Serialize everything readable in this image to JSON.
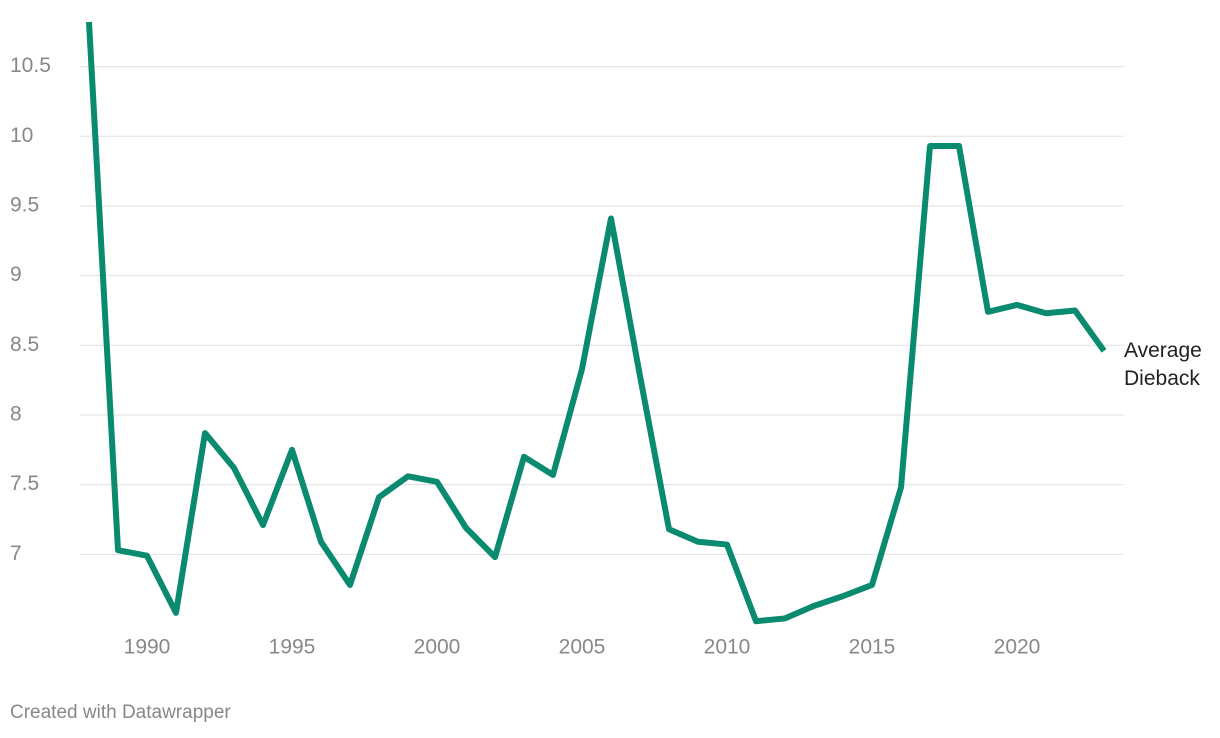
{
  "chart_data": {
    "type": "line",
    "x": [
      1988,
      1989,
      1990,
      1991,
      1992,
      1993,
      1994,
      1995,
      1996,
      1997,
      1998,
      1999,
      2000,
      2001,
      2002,
      2003,
      2004,
      2005,
      2006,
      2007,
      2008,
      2009,
      2010,
      2011,
      2012,
      2013,
      2014,
      2015,
      2016,
      2017,
      2018,
      2019,
      2020,
      2021,
      2022,
      2023
    ],
    "series": [
      {
        "name": "Average Dieback",
        "color": "#0a8a6e",
        "values": [
          10.82,
          7.03,
          6.99,
          6.58,
          7.87,
          7.62,
          7.21,
          7.75,
          7.09,
          6.78,
          7.41,
          7.56,
          7.52,
          7.19,
          6.98,
          7.7,
          7.57,
          8.33,
          9.41,
          8.28,
          7.18,
          7.09,
          7.07,
          6.52,
          6.54,
          6.63,
          6.7,
          6.78,
          7.48,
          9.93,
          9.93,
          8.74,
          8.79,
          8.73,
          8.75,
          8.46
        ]
      }
    ],
    "xlim": [
      1988,
      2023
    ],
    "xticks": [
      1990,
      1995,
      2000,
      2005,
      2010,
      2015,
      2020
    ],
    "ylim": [
      6.5,
      10.82
    ],
    "yticks": [
      7,
      7.5,
      8,
      8.5,
      9,
      9.5,
      10,
      10.5
    ],
    "grid": true,
    "credit": "Created with Datawrapper"
  }
}
